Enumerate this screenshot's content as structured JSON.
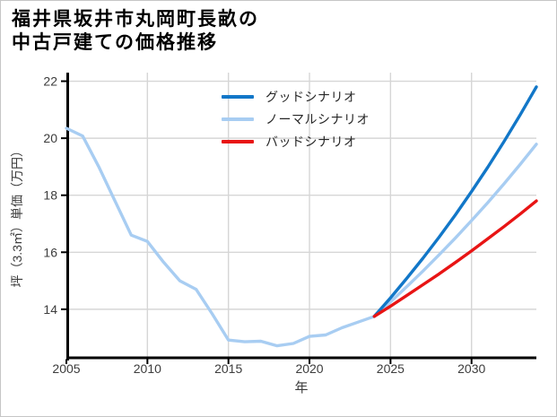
{
  "title": {
    "line1": "福井県坂井市丸岡町長畝の",
    "line2": "中古戸建ての価格推移"
  },
  "chart_data": {
    "type": "line",
    "title": "福井県坂井市丸岡町長畝の中古戸建ての価格推移",
    "xlabel": "年",
    "ylabel": "坪（3.3㎡）単価（万円）",
    "xlim": [
      2005,
      2034
    ],
    "ylim": [
      12.25,
      22.3
    ],
    "x_ticks": [
      "2005",
      "2010",
      "2015",
      "2020",
      "2025",
      "2030"
    ],
    "y_ticks": [
      "14",
      "16",
      "18",
      "20",
      "22"
    ],
    "grid": true,
    "legend_position": "upper-center-inside-no-frame",
    "colors": {
      "axis": "#000000",
      "grid": "#d6d6d6",
      "tick_label": "#3c3c3c"
    },
    "legend_items": [
      {
        "label": "グッドシナリオ",
        "color": "#1277c8"
      },
      {
        "label": "ノーマルシナリオ",
        "color": "#a8cdf2"
      },
      {
        "label": "バッドシナリオ",
        "color": "#e81414"
      }
    ],
    "series": [
      {
        "id": "normal-scenario",
        "name": "ノーマルシナリオ",
        "role": "history-and-normal-forecast",
        "color": "#a8cdf2",
        "x": [
          2005,
          2006,
          2007,
          2008,
          2009,
          2010,
          2011,
          2012,
          2013,
          2014,
          2015,
          2016,
          2017,
          2018,
          2019,
          2020,
          2021,
          2022,
          2023,
          2024,
          2025,
          2026,
          2027,
          2028,
          2029,
          2030,
          2031,
          2032,
          2033,
          2034
        ],
        "y": [
          20.35,
          20.08,
          19.0,
          17.8,
          16.6,
          16.38,
          15.65,
          15.0,
          14.7,
          13.84,
          12.92,
          12.86,
          12.88,
          12.72,
          12.8,
          13.05,
          13.1,
          13.35,
          13.55,
          13.75,
          14.26,
          14.79,
          15.34,
          15.91,
          16.5,
          17.11,
          17.74,
          18.4,
          19.08,
          19.79
        ]
      },
      {
        "id": "good-scenario",
        "name": "グッドシナリオ",
        "role": "good-forecast",
        "color": "#1277c8",
        "x": [
          2024,
          2025,
          2026,
          2027,
          2028,
          2029,
          2030,
          2031,
          2032,
          2033,
          2034
        ],
        "y": [
          13.75,
          14.4,
          15.08,
          15.79,
          16.53,
          17.31,
          18.13,
          18.98,
          19.88,
          20.82,
          21.8
        ]
      },
      {
        "id": "bad-scenario",
        "name": "バッドシナリオ",
        "role": "bad-forecast",
        "color": "#e81414",
        "x": [
          2024,
          2025,
          2026,
          2027,
          2028,
          2029,
          2030,
          2031,
          2032,
          2033,
          2034
        ],
        "y": [
          13.75,
          14.11,
          14.48,
          14.86,
          15.24,
          15.64,
          16.05,
          16.47,
          16.9,
          17.34,
          17.8
        ]
      }
    ]
  }
}
